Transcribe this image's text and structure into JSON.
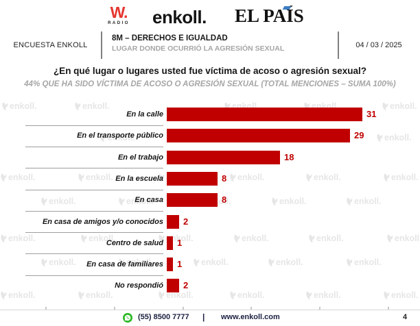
{
  "brand_bar": {
    "wradio_mark": "W.",
    "wradio_caption": "RADIO",
    "enkoll_logo": "enkoll.",
    "elpais_logo": "EL PAÍS"
  },
  "header": {
    "program": "ENCUESTA ENKOLL",
    "edition_title": "8M – DERECHOS E IGUALDAD",
    "edition_subtitle": "LUGAR DONDE OCURRIÓ LA AGRESIÓN SEXUAL",
    "date": "04 / 03 / 2025"
  },
  "question_title": "¿En qué lugar o lugares usted fue víctima de acoso o agresión sexual?",
  "question_note": "44% QUE HA SIDO VÍCTIMA DE ACOSO O AGRESIÓN SEXUAL (TOTAL MENCIONES – SUMA 100%)",
  "chart_data": {
    "type": "bar",
    "orientation": "horizontal",
    "title": "¿En qué lugar o lugares usted fue víctima de acoso o agresión sexual?",
    "subtitle": "44% QUE HA SIDO VÍCTIMA DE ACOSO O AGRESIÓN SEXUAL (TOTAL MENCIONES – SUMA 100%)",
    "categories": [
      "En la calle",
      "En el transporte público",
      "En el trabajo",
      "En la escuela",
      "En casa",
      "En casa de amigos y/o conocidos",
      "Centro de salud",
      "En casa de familiares",
      "No respondió"
    ],
    "values": [
      31,
      29,
      18,
      8,
      8,
      2,
      1,
      1,
      2
    ],
    "xlim": [
      0,
      31
    ],
    "bar_color": "#C00000",
    "value_label_color": "#C00000",
    "grid": false,
    "legend": null,
    "value_labels_shown": true
  },
  "watermark_text": "enkoll.",
  "footer": {
    "phone": "(55) 8500 7777",
    "divider": "|",
    "website": "www.enkoll.com",
    "page_number": "4"
  },
  "colors": {
    "bar_red": "#C00000",
    "wradio_red": "#E5352F",
    "muted_gray": "#A6A6A6",
    "watermark_gray": "#E6E6E6",
    "whatsapp_green": "#2BB826",
    "elpais_accent_blue": "#3B7DC4"
  }
}
